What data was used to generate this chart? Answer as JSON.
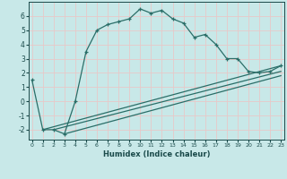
{
  "xlabel": "Humidex (Indice chaleur)",
  "background_color": "#c8e8e8",
  "grid_color": "#e8c8c8",
  "line_color": "#2a6e68",
  "xlim": [
    -0.3,
    23.3
  ],
  "ylim": [
    -2.7,
    7.0
  ],
  "yticks": [
    -2,
    -1,
    0,
    1,
    2,
    3,
    4,
    5,
    6
  ],
  "xticks": [
    0,
    1,
    2,
    3,
    4,
    5,
    6,
    7,
    8,
    9,
    10,
    11,
    12,
    13,
    14,
    15,
    16,
    17,
    18,
    19,
    20,
    21,
    22,
    23
  ],
  "curve1_x": [
    0,
    1,
    2,
    3,
    4,
    5,
    6,
    7,
    8,
    9,
    10,
    11,
    12,
    13,
    14,
    15,
    16,
    17,
    18,
    19,
    20,
    21,
    22,
    23
  ],
  "curve1_y": [
    1.5,
    -2.0,
    -2.0,
    -2.3,
    0.0,
    3.5,
    5.0,
    5.4,
    5.6,
    5.8,
    6.5,
    6.2,
    6.4,
    5.8,
    5.5,
    4.5,
    4.7,
    4.0,
    3.0,
    3.0,
    2.1,
    2.0,
    2.1,
    2.5
  ],
  "line1_x": [
    1,
    23
  ],
  "line1_y": [
    -2.0,
    2.5
  ],
  "line2_x": [
    2,
    23
  ],
  "line2_y": [
    -2.0,
    2.1
  ],
  "line3_x": [
    3,
    23
  ],
  "line3_y": [
    -2.3,
    1.8
  ]
}
